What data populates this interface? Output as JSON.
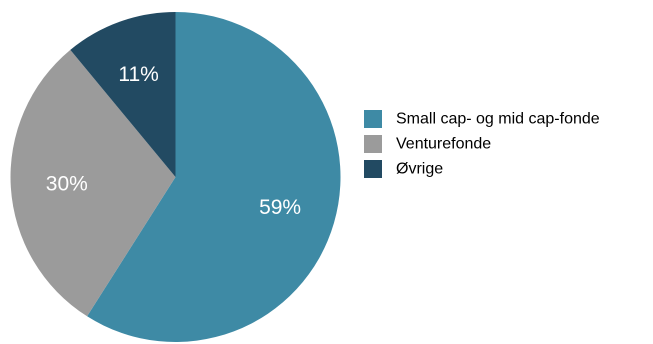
{
  "chart_data": {
    "type": "pie",
    "categories": [
      "Small cap- og mid cap-fonde",
      "Venturefonde",
      "Øvrige"
    ],
    "values": [
      59,
      30,
      11
    ],
    "labels": [
      "59%",
      "30%",
      "11%"
    ],
    "colors": [
      "#3e8aa5",
      "#9b9b9b",
      "#224a62"
    ],
    "legend_position": "right",
    "start_angle": "12 o'clock",
    "direction": "clockwise"
  }
}
